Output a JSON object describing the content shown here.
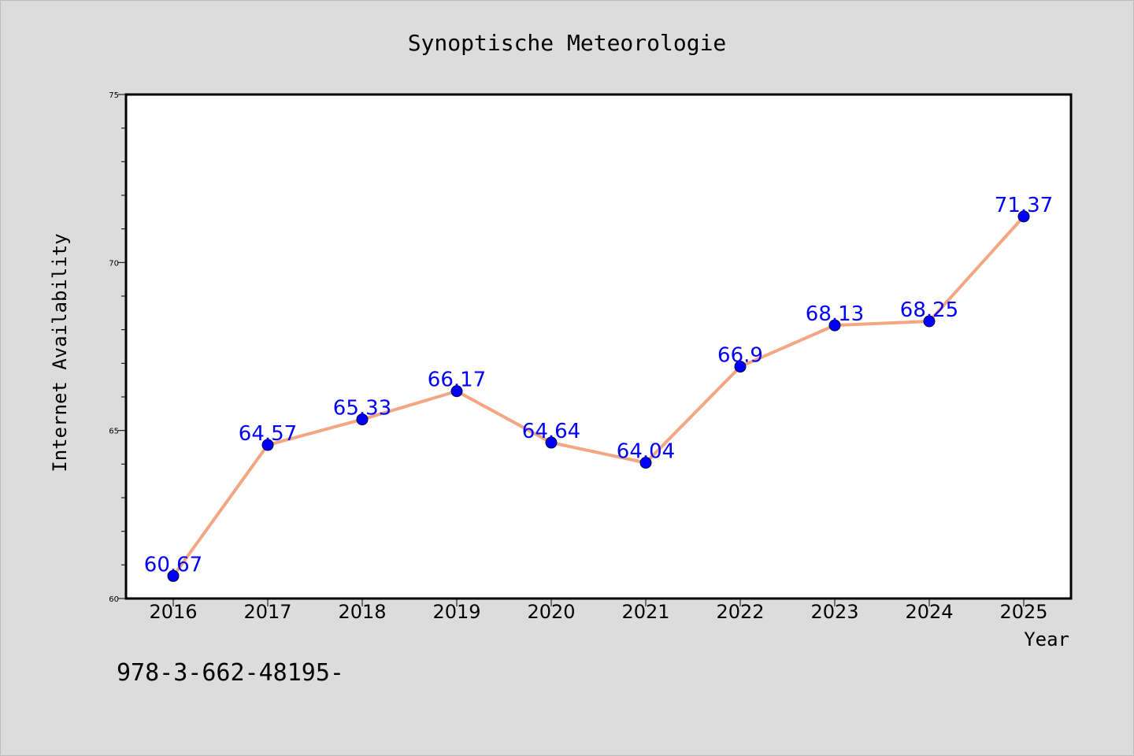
{
  "chart_data": {
    "type": "line",
    "title": "Synoptische Meteorologie",
    "xlabel": "Year",
    "ylabel": "Internet Availability",
    "categories": [
      "2016",
      "2017",
      "2018",
      "2019",
      "2020",
      "2021",
      "2022",
      "2023",
      "2024",
      "2025"
    ],
    "series": [
      {
        "values": [
          60.67,
          64.57,
          65.33,
          66.17,
          64.64,
          64.04,
          66.9,
          68.13,
          68.25,
          71.37
        ],
        "data_labels": [
          "60.67",
          "64.57",
          "65.33",
          "66.17",
          "64.64",
          "64.04",
          "66.9",
          "68.13",
          "68.25",
          "71.37"
        ]
      }
    ],
    "ylim": [
      60,
      75
    ],
    "y_ticks": [
      60,
      65,
      70,
      75
    ],
    "y_tick_labels": [
      "60",
      "65",
      "70",
      "75"
    ],
    "grid": false,
    "line_color": "#f4a582",
    "marker_color": "#0000ff",
    "label_color": "#0000ff"
  },
  "footer_text": "978-3-662-48195-"
}
